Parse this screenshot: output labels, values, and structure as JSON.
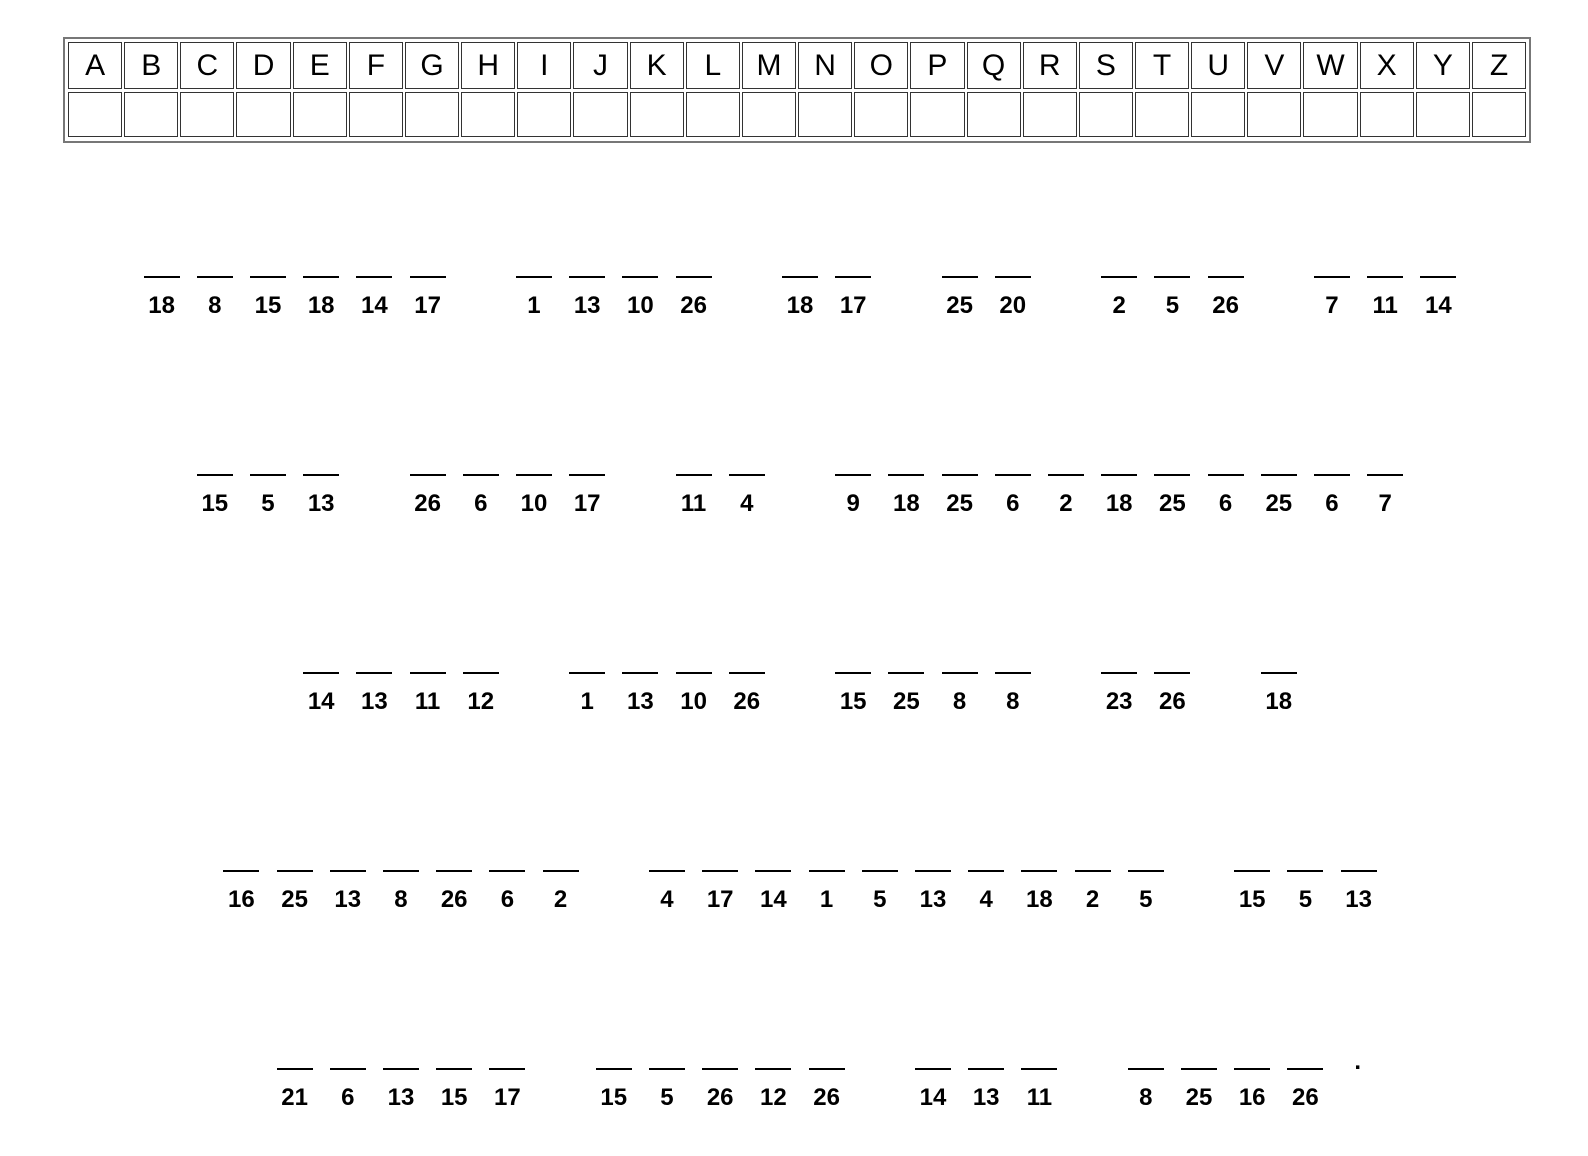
{
  "alphabet": [
    "A",
    "B",
    "C",
    "D",
    "E",
    "F",
    "G",
    "H",
    "I",
    "J",
    "K",
    "L",
    "M",
    "N",
    "O",
    "P",
    "Q",
    "R",
    "S",
    "T",
    "U",
    "V",
    "W",
    "X",
    "Y",
    "Z"
  ],
  "rows": [
    [
      [
        18,
        8,
        15,
        18,
        14,
        17
      ],
      [
        1,
        13,
        10,
        26
      ],
      [
        18,
        17
      ],
      [
        25,
        20
      ],
      [
        2,
        5,
        26
      ],
      [
        7,
        11,
        14
      ]
    ],
    [
      [
        15,
        5,
        13
      ],
      [
        26,
        6,
        10,
        17
      ],
      [
        11,
        4
      ],
      [
        9,
        18,
        25,
        6,
        2,
        18,
        25,
        6,
        25,
        6,
        7
      ]
    ],
    [
      [
        14,
        13,
        11,
        12
      ],
      [
        1,
        13,
        10,
        26
      ],
      [
        15,
        25,
        8,
        8
      ],
      [
        23,
        26
      ],
      [
        18
      ]
    ],
    [
      [
        16,
        25,
        13,
        8,
        26,
        6,
        2
      ],
      [
        4,
        17,
        14,
        1,
        5,
        13,
        4,
        18,
        2,
        5
      ],
      [
        15,
        5,
        13
      ]
    ],
    [
      [
        21,
        6,
        13,
        15,
        17
      ],
      [
        15,
        5,
        26,
        12,
        26
      ],
      [
        14,
        13,
        11
      ],
      [
        8,
        25,
        16,
        26
      ]
    ]
  ],
  "final_punctuation": "."
}
